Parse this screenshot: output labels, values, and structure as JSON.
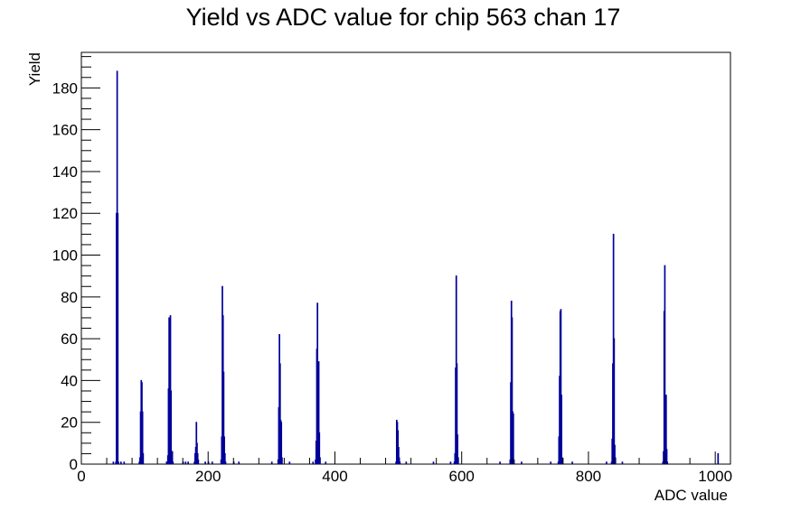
{
  "chart_data": {
    "type": "histogram",
    "title": "Yield vs ADC value for chip 563 chan 17",
    "xlabel": "ADC value",
    "ylabel": "Yield",
    "xlim": [
      0,
      1024
    ],
    "ylim": [
      0,
      197
    ],
    "x_ticks": [
      0,
      200,
      400,
      600,
      800,
      1000
    ],
    "y_ticks": [
      0,
      20,
      40,
      60,
      80,
      100,
      120,
      140,
      160,
      180
    ],
    "grid": false,
    "line_color": "#000099",
    "series": [
      {
        "bin_width": 1,
        "points": [
          [
            50,
            1
          ],
          [
            54,
            1
          ],
          [
            55,
            120
          ],
          [
            56,
            188
          ],
          [
            57,
            120
          ],
          [
            58,
            1
          ],
          [
            62,
            1
          ],
          [
            67,
            1
          ],
          [
            91,
            1
          ],
          [
            92,
            3
          ],
          [
            93,
            25
          ],
          [
            94,
            40
          ],
          [
            95,
            39
          ],
          [
            96,
            25
          ],
          [
            97,
            5
          ],
          [
            134,
            1
          ],
          [
            135,
            1
          ],
          [
            136,
            4
          ],
          [
            137,
            36
          ],
          [
            138,
            70
          ],
          [
            139,
            36
          ],
          [
            140,
            71
          ],
          [
            141,
            35
          ],
          [
            142,
            6
          ],
          [
            143,
            6
          ],
          [
            144,
            1
          ],
          [
            160,
            1
          ],
          [
            164,
            1
          ],
          [
            168,
            1
          ],
          [
            178,
            1
          ],
          [
            179,
            5
          ],
          [
            180,
            8
          ],
          [
            181,
            20
          ],
          [
            182,
            10
          ],
          [
            183,
            5
          ],
          [
            184,
            2
          ],
          [
            195,
            1
          ],
          [
            200,
            1
          ],
          [
            206,
            1
          ],
          [
            220,
            2
          ],
          [
            221,
            13
          ],
          [
            222,
            85
          ],
          [
            223,
            71
          ],
          [
            224,
            44
          ],
          [
            225,
            13
          ],
          [
            226,
            5
          ],
          [
            227,
            1
          ],
          [
            240,
            1
          ],
          [
            248,
            1
          ],
          [
            300,
            1
          ],
          [
            310,
            2
          ],
          [
            311,
            27
          ],
          [
            312,
            62
          ],
          [
            313,
            48
          ],
          [
            314,
            21
          ],
          [
            315,
            20
          ],
          [
            316,
            3
          ],
          [
            328,
            1
          ],
          [
            365,
            1
          ],
          [
            369,
            2
          ],
          [
            370,
            11
          ],
          [
            371,
            55
          ],
          [
            372,
            77
          ],
          [
            373,
            48
          ],
          [
            374,
            49
          ],
          [
            375,
            15
          ],
          [
            376,
            3
          ],
          [
            385,
            1
          ],
          [
            496,
            1
          ],
          [
            497,
            21
          ],
          [
            498,
            20
          ],
          [
            499,
            16
          ],
          [
            500,
            8
          ],
          [
            501,
            3
          ],
          [
            502,
            1
          ],
          [
            512,
            1
          ],
          [
            555,
            1
          ],
          [
            582,
            1
          ],
          [
            588,
            1
          ],
          [
            589,
            5
          ],
          [
            590,
            46
          ],
          [
            591,
            90
          ],
          [
            592,
            48
          ],
          [
            593,
            14
          ],
          [
            594,
            3
          ],
          [
            660,
            1
          ],
          [
            676,
            2
          ],
          [
            677,
            39
          ],
          [
            678,
            78
          ],
          [
            679,
            70
          ],
          [
            680,
            25
          ],
          [
            681,
            24
          ],
          [
            682,
            2
          ],
          [
            694,
            1
          ],
          [
            740,
            1
          ],
          [
            752,
            1
          ],
          [
            753,
            13
          ],
          [
            754,
            42
          ],
          [
            755,
            73
          ],
          [
            756,
            74
          ],
          [
            757,
            33
          ],
          [
            758,
            3
          ],
          [
            774,
            1
          ],
          [
            828,
            1
          ],
          [
            836,
            1
          ],
          [
            837,
            12
          ],
          [
            838,
            48
          ],
          [
            839,
            110
          ],
          [
            840,
            60
          ],
          [
            841,
            9
          ],
          [
            842,
            3
          ],
          [
            853,
            1
          ],
          [
            917,
            1
          ],
          [
            918,
            6
          ],
          [
            919,
            73
          ],
          [
            920,
            95
          ],
          [
            921,
            26
          ],
          [
            922,
            33
          ],
          [
            923,
            7
          ],
          [
            924,
            1
          ],
          [
            1004,
            5
          ]
        ]
      }
    ]
  }
}
